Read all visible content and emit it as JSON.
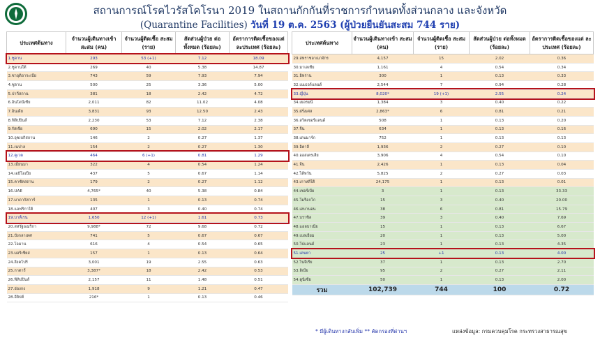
{
  "header": {
    "title_line1": "สถานการณ์โรคไวรัสโคโรนา 2019 ในสถานกักกันที่ราชการกำหนดทั้งส่วนกลาง และจังหวัด",
    "title_line2_a": "(Quarantine Facilities)",
    "title_line2_b": "วันที่ 19 ต.ค. 2563  (ผู้ป่วยยืนยันสะสม 744 ราย)"
  },
  "colors": {
    "origin_bg": "#fbe6c9",
    "green_bg": "#d7e9cc",
    "total_bg": "#bcd9ea",
    "highlight_border": "#b5121b",
    "highlight_text": "#1f32a8"
  },
  "columns": [
    "ประเทศต้นทาง",
    "จำนวนผู้เดินทางเข้า สะสม (คน)",
    "จำนวนผู้ติดเชื้อ สะสม (ราย)",
    "สัดส่วนผู้ป่วย ต่อทั้งหมด (ร้อยละ)",
    "อัตราการติดเชื้อของแต่ ละประเทศ (ร้อยละ)"
  ],
  "left_rows": [
    [
      "1.ซูดาน",
      "293",
      "53 (+1)",
      "7.12",
      "18.09"
    ],
    [
      "2.ซูดานใต้",
      "269",
      "40",
      "5.38",
      "14.87"
    ],
    [
      "3.ซาอุดิอาระเบีย",
      "743",
      "59",
      "7.93",
      "7.94"
    ],
    [
      "4.ซูดาน",
      "500",
      "25",
      "3.36",
      "5.00"
    ],
    [
      "5.ปากีสถาน",
      "381",
      "18",
      "2.42",
      "4.72"
    ],
    [
      "6.อินโดนีเซีย",
      "2,011",
      "82",
      "11.02",
      "4.08"
    ],
    [
      "7.อินเดีย",
      "3,831",
      "93",
      "12.50",
      "2.43"
    ],
    [
      "8.ฟิลิปปินส์",
      "2,230",
      "53",
      "7.12",
      "2.38"
    ],
    [
      "9.รัสเซีย",
      "690",
      "15",
      "2.02",
      "2.17"
    ],
    [
      "10.อุซเบกิสถาน",
      "146",
      "2",
      "0.27",
      "1.37"
    ],
    [
      "11.เนปาล",
      "154",
      "2",
      "0.27",
      "1.30"
    ],
    [
      "12.คูเวต",
      "464",
      "6 (+1)",
      "0.81",
      "1.29"
    ],
    [
      "13.เมียนมา",
      "322",
      "4",
      "0.54",
      "1.24"
    ],
    [
      "14.เอธิโอเปีย",
      "437",
      "5",
      "0.67",
      "1.14"
    ],
    [
      "15.คาซัคสถาน",
      "179",
      "2",
      "0.27",
      "1.12"
    ],
    [
      "16.UAE",
      "4,765*",
      "40",
      "5.38",
      "0.84"
    ],
    [
      "17.มาดากัสการ์",
      "135",
      "1",
      "0.13",
      "0.74"
    ],
    [
      "18.แอฟริกาใต้",
      "407",
      "3",
      "0.40",
      "0.74"
    ],
    [
      "19.บาห์เรน",
      "1,650",
      "12 (+1)",
      "1.61",
      "0.73"
    ],
    [
      "20.สหรัฐอเมริกา",
      "9,988*",
      "72",
      "9.68",
      "0.72"
    ],
    [
      "21.บังกลาเทศ",
      "741",
      "5",
      "0.67",
      "0.67"
    ],
    [
      "22.โอมาน",
      "616",
      "4",
      "0.54",
      "0.65"
    ],
    [
      "23.มอริเชียส",
      "157",
      "1",
      "0.13",
      "0.64"
    ],
    [
      "24.สิงคโปร์",
      "3,001",
      "19",
      "2.55",
      "0.63"
    ],
    [
      "25.กาตาร์",
      "3,387*",
      "18",
      "2.42",
      "0.53"
    ],
    [
      "26.ฟิลิปปินส์",
      "2,157",
      "11",
      "1.48",
      "0.51"
    ],
    [
      "27.ฮ่องกง",
      "1,918",
      "9",
      "1.21",
      "0.47"
    ],
    [
      "28.อียิปต์",
      "216*",
      "1",
      "0.13",
      "0.46"
    ]
  ],
  "right_rows": [
    [
      "29.สหราชอาณาจักร",
      "4,157",
      "15",
      "2.02",
      "0.36"
    ],
    [
      "30.มาเลเซีย",
      "1,161",
      "4",
      "0.54",
      "0.34"
    ],
    [
      "31.อิหร่าน",
      "300",
      "1",
      "0.13",
      "0.33"
    ],
    [
      "32.เนเธอร์แลนด์",
      "2,544",
      "7",
      "0.94",
      "0.28"
    ],
    [
      "33.ญี่ปุ่น",
      "8,020*",
      "19 (+1)",
      "2.55",
      "0.24"
    ],
    [
      "34.เยอรมนี",
      "1,384",
      "3",
      "0.40",
      "0.22"
    ],
    [
      "35.ฝรั่งเศส",
      "2,863*",
      "6",
      "0.81",
      "0.21"
    ],
    [
      "36.สวิตเซอร์แลนด์",
      "508",
      "1",
      "0.13",
      "0.20"
    ],
    [
      "37.จีน",
      "634",
      "1",
      "0.13",
      "0.16"
    ],
    [
      "38.เดนมาร์ก",
      "752",
      "1",
      "0.13",
      "0.13"
    ],
    [
      "39.อิตาลี",
      "1,936",
      "2",
      "0.27",
      "0.10"
    ],
    [
      "40.ออสเตรเลีย",
      "3,906",
      "4",
      "0.54",
      "0.10"
    ],
    [
      "41.จีน",
      "2,426",
      "1",
      "0.13",
      "0.04"
    ],
    [
      "42.ไต้หวัน",
      "5,825",
      "2",
      "0.27",
      "0.03"
    ],
    [
      "43.เกาหลีใต้",
      "24,175",
      "1",
      "0.13",
      "0.01"
    ],
    [
      "44.เซอร์เบีย",
      "3",
      "1",
      "0.13",
      "33.33"
    ],
    [
      "45.โมร็อกโก",
      "15",
      "3",
      "0.40",
      "20.00"
    ],
    [
      "46.เลบานอน",
      "38",
      "6",
      "0.81",
      "15.79"
    ],
    [
      "47.บราซิล",
      "39",
      "3",
      "0.40",
      "7.69"
    ],
    [
      "48.แอลบาเนีย",
      "15",
      "1",
      "0.13",
      "6.67"
    ],
    [
      "49.เบลเยียม",
      "20",
      "1",
      "0.13",
      "5.00"
    ],
    [
      "50.โปแลนด์",
      "23",
      "1",
      "0.13",
      "4.35"
    ],
    [
      "51.เคนยา",
      "25",
      "+1",
      "0.13",
      "4.00"
    ],
    [
      "52.ไนจีเรีย",
      "37",
      "1",
      "0.13",
      "2.70"
    ],
    [
      "53.ลิเบีย",
      "95",
      "2",
      "0.27",
      "2.11"
    ],
    [
      "54.ตูนิเซีย",
      "50",
      "1",
      "0.13",
      "2.00"
    ]
  ],
  "total_row": [
    "รวม",
    "102,739",
    "744",
    "100",
    "0.72"
  ],
  "footnote": "* มีผู้เดินทางกลับเพิ่ม  ** คัดกรองที่ด่านฯ",
  "source": "แหล่งข้อมูล: กรมควบคุมโรค กระทรวงสาธารณสุข"
}
